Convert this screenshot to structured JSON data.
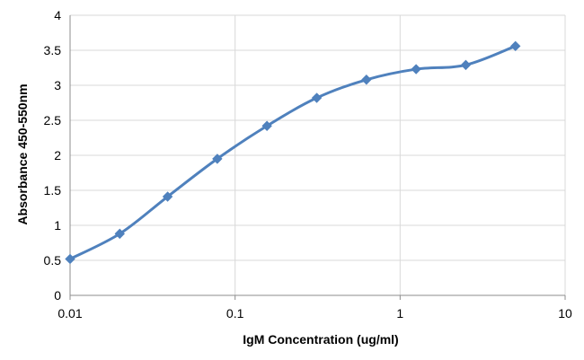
{
  "chart_data": {
    "type": "line",
    "xlabel": "IgM Concentration (ug/ml)",
    "ylabel": "Absorbance 450-550nm",
    "x_scale": "log",
    "xlim": [
      0.01,
      10
    ],
    "ylim": [
      0,
      4
    ],
    "grid": true,
    "x_ticks": [
      0.01,
      0.1,
      1,
      10
    ],
    "x_tick_labels": [
      "0.01",
      "0.1",
      "1",
      "10"
    ],
    "y_ticks": [
      0,
      0.5,
      1,
      1.5,
      2,
      2.5,
      3,
      3.5,
      4
    ],
    "y_tick_labels": [
      "0",
      "0.5",
      "1",
      "1.5",
      "2",
      "2.5",
      "3",
      "3.5",
      "4"
    ],
    "series": [
      {
        "color": "#4f81bd",
        "marker": "diamond",
        "x": [
          0.01,
          0.02,
          0.039,
          0.078,
          0.156,
          0.3125,
          0.625,
          1.25,
          2.5,
          5
        ],
        "y": [
          0.52,
          0.88,
          1.41,
          1.95,
          2.42,
          2.82,
          3.08,
          3.23,
          3.29,
          3.56
        ]
      }
    ]
  }
}
